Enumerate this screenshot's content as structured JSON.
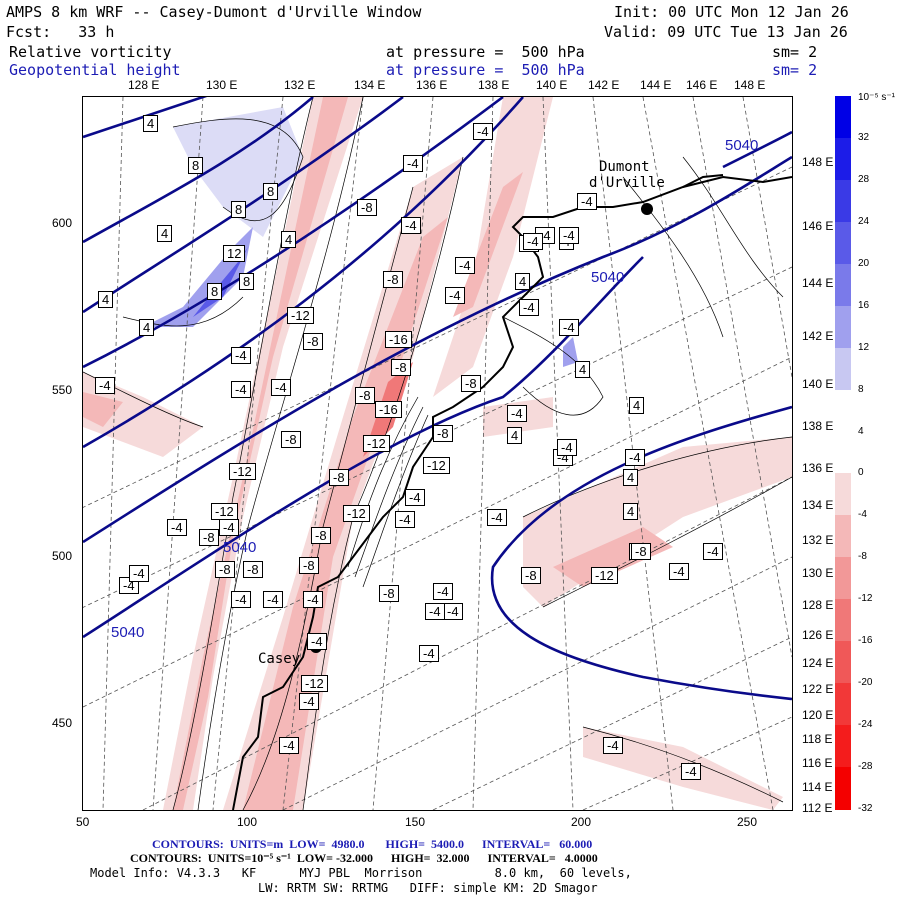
{
  "header": {
    "title_line1": "AMPS 8 km WRF -- Casey-Dumont d'Urville Window",
    "init_line": "Init: 00 UTC Mon 12 Jan 26",
    "fcst_line": "Fcst:   33 h",
    "valid_line": "Valid: 09 UTC Tue 13 Jan 26",
    "field1_name": "Relative vorticity",
    "field1_pressure": "at pressure =  500 hPa",
    "field1_sm": "sm= 2",
    "field2_name": "Geopotential height",
    "field2_pressure": "at pressure =  500 hPa",
    "field2_sm": "sm= 2"
  },
  "map": {
    "top_lon_labels": [
      "128 E",
      "130 E",
      "132 E",
      "134 E",
      "136 E",
      "138 E",
      "140 E",
      "142 E",
      "144 E",
      "146 E",
      "148 E"
    ],
    "right_lon_labels": [
      "148 E",
      "146 E",
      "144 E",
      "142 E",
      "140 E",
      "138 E",
      "136 E",
      "134 E",
      "132 E",
      "130 E",
      "128 E",
      "126 E",
      "124 E",
      "122 E",
      "120 E",
      "118 E",
      "116 E",
      "114 E",
      "112 E"
    ],
    "x_ticks": [
      "50",
      "100",
      "150",
      "200",
      "250"
    ],
    "y_ticks": [
      "600",
      "550",
      "500",
      "450"
    ],
    "stations": [
      {
        "name_line1": "Dumont",
        "name_line2": "d'Urville"
      },
      {
        "name_line1": "Casey",
        "name_line2": ""
      }
    ],
    "height_labels": [
      "5040",
      "5040",
      "5040",
      "5040"
    ],
    "vort_labels": [
      "4",
      "8",
      "8",
      "8",
      "4",
      "4",
      "12",
      "8",
      "8",
      "4",
      "4",
      "-4",
      "-4",
      "-4",
      "-4",
      "-4",
      "-4",
      "-4",
      "-4",
      "-4",
      "-4",
      "-4",
      "-4",
      "-4",
      "-4",
      "-4",
      "-4",
      "-8",
      "-8",
      "-8",
      "-8",
      "-8",
      "-8",
      "-8",
      "-8",
      "-8",
      "-8",
      "-8",
      "-8",
      "-8",
      "-8",
      "-12",
      "-12",
      "-12",
      "-12",
      "-12",
      "-12",
      "-12",
      "-16",
      "-16",
      "-8",
      "-4",
      "-4",
      "-4",
      "-4",
      "-4",
      "-4",
      "-4",
      "-4",
      "-4",
      "-4",
      "-4",
      "-4",
      "-4",
      "-4",
      "-4",
      "-4",
      "-4",
      "-4",
      "4",
      "4",
      "4",
      "4",
      "4",
      "4",
      "4",
      "4",
      "-8",
      "-12",
      "-8",
      "-4",
      "-4",
      "-4",
      "-4",
      "-4",
      "-4",
      "-4"
    ]
  },
  "colorbar": {
    "unit_label": "10⁻⁵ s⁻¹",
    "levels": [
      "32",
      "28",
      "24",
      "20",
      "16",
      "12",
      "8",
      "4",
      "0",
      "-4",
      "-8",
      "-12",
      "-16",
      "-20",
      "-24",
      "-28",
      "-32"
    ],
    "colors": [
      "#0000e6",
      "#1c1ce8",
      "#3a3ae6",
      "#5a5ae8",
      "#7a7aea",
      "#a0a0ee",
      "#c8c8f2",
      "#ffffff",
      "#ffffff",
      "#f6dada",
      "#f4b8b8",
      "#f29898",
      "#f07878",
      "#f05858",
      "#f23838",
      "#f41c1c",
      "#f40000"
    ]
  },
  "footer": {
    "contours1": "CONTOURS:  UNITS=m  LOW=  4980.0       HIGH=  5400.0      INTERVAL=   60.000",
    "contours2": "CONTOURS:  UNITS=10⁻⁵ s⁻¹  LOW= -32.000      HIGH=  32.000      INTERVAL=   4.0000",
    "model_info": "Model Info: V4.3.3   KF      MYJ PBL  Morrison          8.0 km,  60 levels,",
    "physics": "LW: RRTM SW: RRTMG   DIFF: simple KM: 2D Smagor"
  }
}
